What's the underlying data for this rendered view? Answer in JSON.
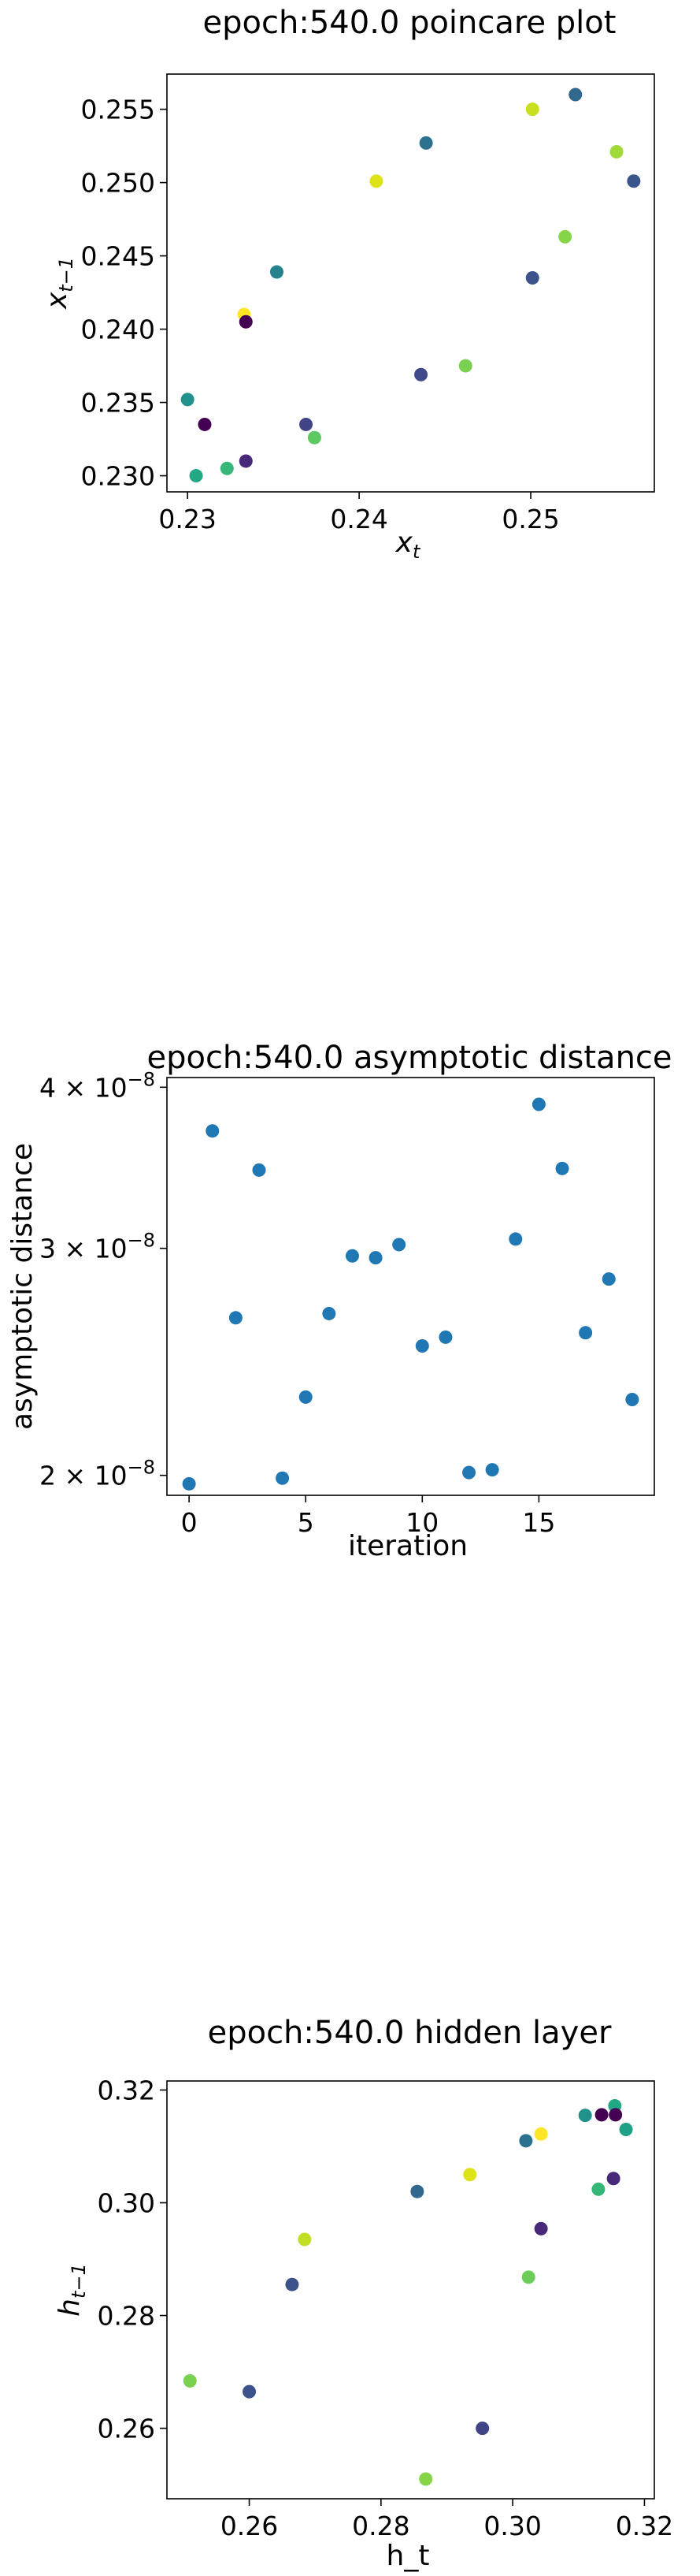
{
  "chart_data": [
    {
      "type": "scatter",
      "title": "epoch:540.0 poincare plot",
      "xlabel": "x",
      "xlabel_sub": "t",
      "ylabel": "x",
      "ylabel_sub": "t−1",
      "xlim": [
        0.2288,
        0.2572
      ],
      "ylim": [
        0.2289,
        0.2574
      ],
      "xticks": [
        0.23,
        0.24,
        0.25
      ],
      "xtick_labels": [
        "0.23",
        "0.24",
        "0.25"
      ],
      "yticks": [
        0.23,
        0.235,
        0.24,
        0.245,
        0.25,
        0.255
      ],
      "ytick_labels": [
        "0.230",
        "0.235",
        "0.240",
        "0.245",
        "0.250",
        "0.255"
      ],
      "colormap": "viridis",
      "points": [
        {
          "x": 0.23,
          "y": 0.2352,
          "color": "#21918c"
        },
        {
          "x": 0.2305,
          "y": 0.23,
          "color": "#22a884"
        },
        {
          "x": 0.231,
          "y": 0.2335,
          "color": "#440154"
        },
        {
          "x": 0.2323,
          "y": 0.2305,
          "color": "#35b779"
        },
        {
          "x": 0.2333,
          "y": 0.241,
          "color": "#fde725"
        },
        {
          "x": 0.2334,
          "y": 0.2405,
          "color": "#440154"
        },
        {
          "x": 0.2334,
          "y": 0.231,
          "color": "#482878"
        },
        {
          "x": 0.2352,
          "y": 0.2439,
          "color": "#26828e"
        },
        {
          "x": 0.2369,
          "y": 0.2335,
          "color": "#414487"
        },
        {
          "x": 0.2374,
          "y": 0.2326,
          "color": "#5ec962"
        },
        {
          "x": 0.241,
          "y": 0.2501,
          "color": "#dde318"
        },
        {
          "x": 0.2436,
          "y": 0.2369,
          "color": "#3e4a89"
        },
        {
          "x": 0.2439,
          "y": 0.2527,
          "color": "#2c728e"
        },
        {
          "x": 0.2462,
          "y": 0.2375,
          "color": "#7ad151"
        },
        {
          "x": 0.2501,
          "y": 0.2435,
          "color": "#3b528b"
        },
        {
          "x": 0.2501,
          "y": 0.255,
          "color": "#c8e020"
        },
        {
          "x": 0.252,
          "y": 0.2463,
          "color": "#86d549"
        },
        {
          "x": 0.2526,
          "y": 0.256,
          "color": "#31688e"
        },
        {
          "x": 0.255,
          "y": 0.2521,
          "color": "#a0da39"
        },
        {
          "x": 0.256,
          "y": 0.2501,
          "color": "#3a548c"
        }
      ]
    },
    {
      "type": "scatter",
      "title": "epoch:540.0 asymptotic distance",
      "xlabel": "iteration",
      "ylabel": "asymptotic distance",
      "yscale": "log",
      "xlim": [
        -0.95,
        19.95
      ],
      "ylim": [
        1.93e-08,
        4.07e-08
      ],
      "xticks": [
        0,
        5,
        10,
        15
      ],
      "xtick_labels": [
        "0",
        "5",
        "10",
        "15"
      ],
      "yticks": [
        2e-08,
        3e-08,
        4e-08
      ],
      "ytick_labels": [
        {
          "base": "2 × 10",
          "exp": "−8"
        },
        {
          "base": "3 × 10",
          "exp": "−8"
        },
        {
          "base": "4 × 10",
          "exp": "−8"
        }
      ],
      "color": "#1f77b4",
      "x": [
        0,
        1,
        2,
        3,
        4,
        5,
        6,
        7,
        8,
        9,
        10,
        11,
        12,
        13,
        14,
        15,
        16,
        17,
        18,
        19
      ],
      "y": [
        1.97e-08,
        3.7e-08,
        2.65e-08,
        3.45e-08,
        1.99e-08,
        2.3e-08,
        2.67e-08,
        2.96e-08,
        2.95e-08,
        3.02e-08,
        2.52e-08,
        2.56e-08,
        2.01e-08,
        2.02e-08,
        3.05e-08,
        3.88e-08,
        3.46e-08,
        2.58e-08,
        2.84e-08,
        2.29e-08
      ]
    },
    {
      "type": "scatter",
      "title": "epoch:540.0 hidden layer",
      "xlabel": "h_t",
      "ylabel": "h",
      "ylabel_sub": "t−1",
      "xlim": [
        0.2475,
        0.3215
      ],
      "ylim": [
        0.2475,
        0.3216
      ],
      "xticks": [
        0.26,
        0.28,
        0.3,
        0.32
      ],
      "xtick_labels": [
        "0.26",
        "0.28",
        "0.30",
        "0.32"
      ],
      "yticks": [
        0.26,
        0.28,
        0.3,
        0.32
      ],
      "ytick_labels": [
        "0.26",
        "0.28",
        "0.30",
        "0.32"
      ],
      "colormap": "viridis",
      "points": [
        {
          "x": 0.251,
          "y": 0.2684,
          "color": "#7ad151"
        },
        {
          "x": 0.26,
          "y": 0.2665,
          "color": "#3b528b"
        },
        {
          "x": 0.2665,
          "y": 0.2855,
          "color": "#3b528b"
        },
        {
          "x": 0.2684,
          "y": 0.2935,
          "color": "#c2df23"
        },
        {
          "x": 0.2855,
          "y": 0.302,
          "color": "#31688e"
        },
        {
          "x": 0.2868,
          "y": 0.251,
          "color": "#86d549"
        },
        {
          "x": 0.2935,
          "y": 0.305,
          "color": "#dde318"
        },
        {
          "x": 0.2954,
          "y": 0.26,
          "color": "#414487"
        },
        {
          "x": 0.302,
          "y": 0.311,
          "color": "#2c728e"
        },
        {
          "x": 0.3024,
          "y": 0.2868,
          "color": "#6ccd5a"
        },
        {
          "x": 0.3043,
          "y": 0.3122,
          "color": "#fde725"
        },
        {
          "x": 0.3043,
          "y": 0.2954,
          "color": "#482878"
        },
        {
          "x": 0.311,
          "y": 0.3155,
          "color": "#21918c"
        },
        {
          "x": 0.313,
          "y": 0.3024,
          "color": "#35b779"
        },
        {
          "x": 0.3135,
          "y": 0.3156,
          "color": "#440154"
        },
        {
          "x": 0.3153,
          "y": 0.3043,
          "color": "#482878"
        },
        {
          "x": 0.3155,
          "y": 0.3172,
          "color": "#22a884"
        },
        {
          "x": 0.3156,
          "y": 0.3156,
          "color": "#440154"
        },
        {
          "x": 0.3172,
          "y": 0.313,
          "color": "#1fa187"
        }
      ]
    }
  ]
}
